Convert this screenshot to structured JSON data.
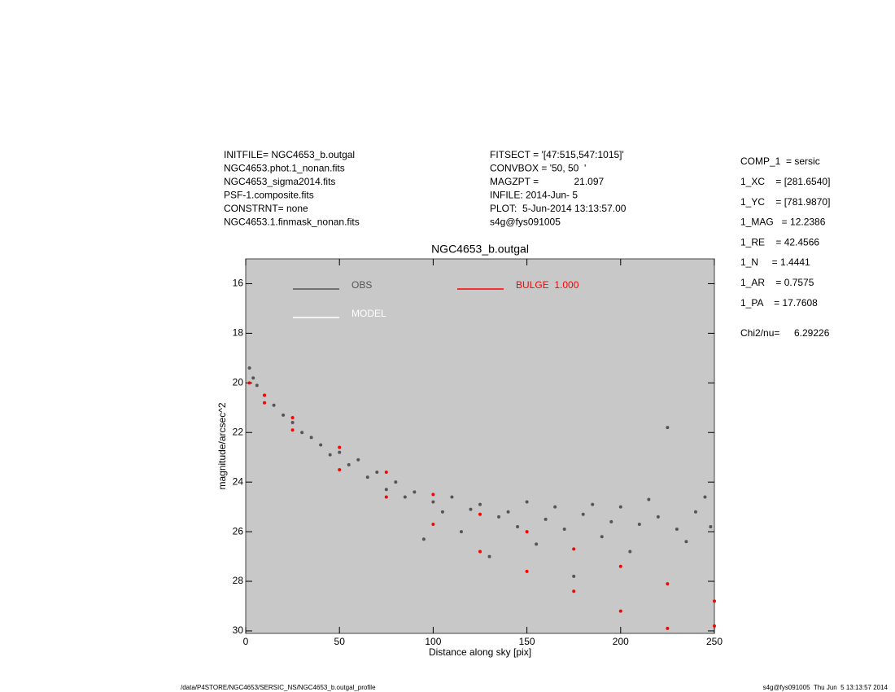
{
  "header": {
    "left": [
      "INITFILE= NGC4653_b.outgal",
      "NGC4653.phot.1_nonan.fits",
      "NGC4653_sigma2014.fits",
      "PSF-1.composite.fits",
      "CONSTRNT= none",
      "NGC4653.1.finmask_nonan.fits"
    ],
    "middle": [
      "FITSECT = '[47:515,547:1015]'",
      "CONVBOX = '50, 50  '",
      "MAGZPT =             21.097",
      "INFILE: 2014-Jun- 5",
      "PLOT:  5-Jun-2014 13:13:57.00",
      "s4g@fys091005"
    ]
  },
  "params": [
    "COMP_1  = sersic",
    "1_XC    = [281.6540]",
    "1_YC    = [781.9870]",
    "1_MAG   = 12.2386",
    "1_RE    = 42.4566",
    "1_N     = 1.4441",
    "1_AR    = 0.7575",
    "1_PA    = 17.7608"
  ],
  "chi2": {
    "label": "Chi2/nu=",
    "value": "6.29226"
  },
  "footer": {
    "left": "/data/P4STORE/NGC4653/SERSIC_NS/NGC4653_b.outgal_profile",
    "right": "s4g@fys091005  Thu Jun  5 13:13:57 2014"
  },
  "chart_data": {
    "type": "scatter",
    "title": "NGC4653_b.outgal",
    "x_label": "Distance along sky [pix]",
    "y_label": "magnitude/arcsec^2",
    "xlim": [
      0,
      250
    ],
    "xticks": [
      0,
      50,
      100,
      150,
      200,
      250
    ],
    "ylim": [
      30.1,
      15
    ],
    "yticks": [
      16,
      18,
      20,
      22,
      24,
      26,
      28,
      30
    ],
    "background": "#c8c8c8",
    "series": [
      {
        "name": "OBS",
        "color": "#555555",
        "x": [
          2,
          4,
          6,
          10,
          15,
          20,
          25,
          30,
          35,
          40,
          45,
          50,
          55,
          60,
          65,
          70,
          75,
          80,
          85,
          90,
          95,
          100,
          105,
          110,
          115,
          120,
          125,
          130,
          135,
          140,
          145,
          150,
          155,
          160,
          165,
          170,
          175,
          180,
          185,
          190,
          195,
          200,
          205,
          210,
          215,
          220,
          225,
          230,
          235,
          240,
          245,
          248
        ],
        "values": [
          19.4,
          19.8,
          20.1,
          20.5,
          20.9,
          21.3,
          21.6,
          22.0,
          22.2,
          22.5,
          22.9,
          22.8,
          23.3,
          23.1,
          23.8,
          23.6,
          24.3,
          24.0,
          24.6,
          24.4,
          26.3,
          24.8,
          25.2,
          24.6,
          26.0,
          25.1,
          24.9,
          27.0,
          25.4,
          25.2,
          25.8,
          24.8,
          26.5,
          25.5,
          25.0,
          25.9,
          27.8,
          25.3,
          24.9,
          26.2,
          25.6,
          25.0,
          26.8,
          25.7,
          24.7,
          25.4,
          21.8,
          25.9,
          26.4,
          25.2,
          24.6,
          25.8
        ]
      },
      {
        "name": "MODEL",
        "color": "#ffffff",
        "x": [],
        "values": []
      },
      {
        "name": "BULGE  1.000",
        "color": "#ff0000",
        "x": [
          2,
          10,
          10,
          25,
          25,
          50,
          50,
          75,
          75,
          100,
          100,
          125,
          125,
          150,
          150,
          175,
          175,
          200,
          200,
          225,
          225,
          250,
          250
        ],
        "values": [
          20.0,
          20.5,
          20.8,
          21.4,
          21.9,
          22.6,
          23.5,
          23.6,
          24.6,
          24.5,
          25.7,
          25.3,
          26.8,
          26.0,
          27.6,
          26.7,
          28.4,
          27.4,
          29.2,
          28.1,
          29.9,
          28.8,
          29.8
        ]
      }
    ]
  }
}
